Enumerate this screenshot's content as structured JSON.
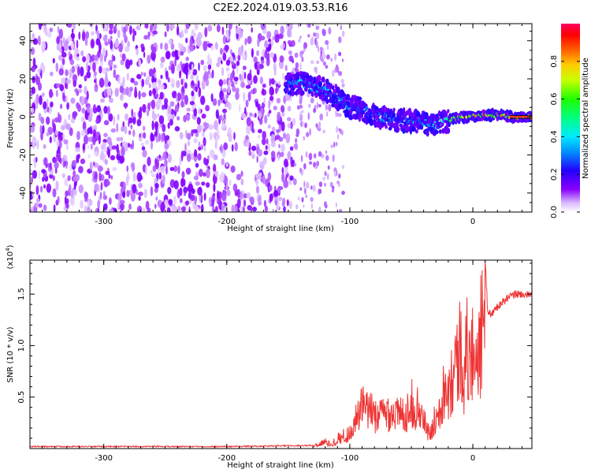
{
  "title": "C2E2.2024.019.03.53.R16",
  "chart_data": [
    {
      "type": "heatmap",
      "xlabel": "Height of straight line (km)",
      "ylabel": "Frequency (Hz)",
      "xlim": [
        -360,
        48
      ],
      "ylim": [
        -50,
        49
      ],
      "xticks": [
        -300,
        -200,
        -100,
        0
      ],
      "xtick_labels": [
        "-300",
        "-200",
        "-100",
        "0"
      ],
      "yticks": [
        -40,
        -20,
        0,
        20,
        40
      ],
      "ytick_labels": [
        "-40",
        "-20",
        "0",
        "20",
        "40"
      ],
      "colorbar": {
        "label": "Normalized spectral amplitude",
        "range": [
          0,
          1
        ],
        "ticks": [
          0,
          0.2,
          0.4,
          0.6,
          0.8
        ],
        "tick_labels": [
          "0.0",
          "0.2",
          "0.4",
          "0.6",
          "0.8"
        ]
      },
      "signal_track": {
        "x": [
          -152,
          -140,
          -130,
          -120,
          -110,
          -100,
          -90,
          -80,
          -70,
          -60,
          -50,
          -40,
          -30,
          -20,
          -10,
          0,
          10,
          20,
          30,
          48
        ],
        "y": [
          17,
          18,
          16,
          14,
          10,
          5,
          4,
          1,
          -1,
          -2,
          -2,
          -3,
          -4,
          -2,
          0,
          0,
          1,
          1,
          0,
          0
        ],
        "peak_amplitude": [
          0.35,
          0.45,
          0.35,
          0.4,
          0.3,
          0.35,
          0.3,
          0.35,
          0.35,
          0.3,
          0.35,
          0.35,
          0.45,
          0.6,
          0.8,
          0.9,
          0.9,
          0.85,
          0.85,
          0.9
        ]
      },
      "noise_region": {
        "x_from": -360,
        "x_to": -145,
        "amplitude": 0.1
      },
      "grid": false
    },
    {
      "type": "line",
      "xlabel": "Height of straight line (km)",
      "ylabel": "SNR (10 * v/v)",
      "y_multiplier_label": "(x10",
      "y_multiplier_exp": "4",
      "y_multiplier_close": ")",
      "xlim": [
        -360,
        48
      ],
      "ylim": [
        0,
        1.83
      ],
      "xticks": [
        -300,
        -200,
        -100,
        0
      ],
      "xtick_labels": [
        "-300",
        "-200",
        "-100",
        "0"
      ],
      "yticks": [
        0.5,
        1.0,
        1.5
      ],
      "ytick_labels": [
        "0.5",
        "1.0",
        "1.5"
      ],
      "series": [
        {
          "color": "#ee3333",
          "x": [
            -360,
            -300,
            -200,
            -130,
            -120,
            -115,
            -110,
            -100,
            -95,
            -90,
            -85,
            -80,
            -75,
            -70,
            -65,
            -60,
            -55,
            -50,
            -45,
            -40,
            -35,
            -30,
            -25,
            -20,
            -15,
            -12,
            -10,
            -7,
            -5,
            -2,
            0,
            5,
            8,
            10,
            12,
            15,
            20,
            25,
            30,
            35,
            40,
            48
          ],
          "y": [
            0.02,
            0.02,
            0.02,
            0.03,
            0.08,
            0.05,
            0.12,
            0.18,
            0.35,
            0.5,
            0.45,
            0.42,
            0.4,
            0.45,
            0.45,
            0.4,
            0.42,
            0.55,
            0.48,
            0.35,
            0.15,
            0.4,
            0.65,
            0.8,
            0.95,
            1.1,
            1.25,
            0.85,
            1.2,
            1.05,
            1.15,
            1.3,
            1.45,
            1.83,
            1.35,
            1.3,
            1.38,
            1.43,
            1.47,
            1.5,
            1.5,
            1.48
          ]
        }
      ],
      "grid": false
    }
  ]
}
